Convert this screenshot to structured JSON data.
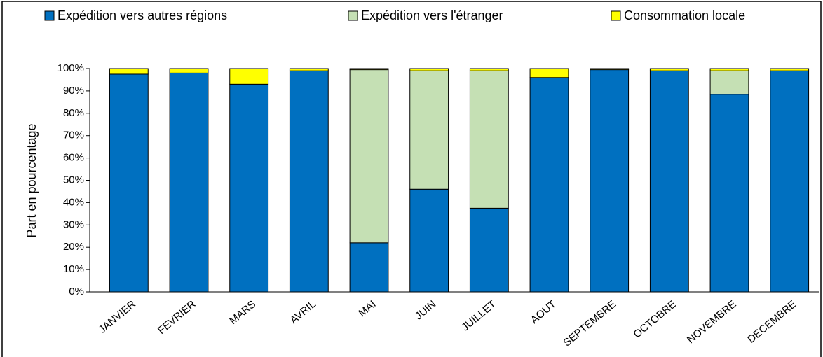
{
  "chart_data": {
    "type": "stacked_bar",
    "y_label": "Part en pourcentage",
    "categories": [
      "JANVIER",
      "FEVRIER",
      "MARS",
      "AVRIL",
      "MAI",
      "JUIN",
      "JUILLET",
      "AOUT",
      "SEPTEMBRE",
      "OCTOBRE",
      "NOVEMBRE",
      "DECEMBRE"
    ],
    "series": [
      {
        "name": "Expédition vers autres régions",
        "color": "#0070c0",
        "values": [
          97.5,
          98,
          93,
          99,
          22,
          46,
          37.5,
          96,
          99.5,
          99,
          88.5,
          99
        ]
      },
      {
        "name": "Expédition vers l'étranger",
        "color": "#c5e0b4",
        "values": [
          0,
          0,
          0,
          0,
          77.5,
          53,
          61.5,
          0,
          0,
          0,
          10.5,
          0
        ]
      },
      {
        "name": "Consommation locale",
        "color": "#ffff00",
        "values": [
          2.5,
          2,
          7,
          1,
          0.5,
          1,
          1,
          4,
          0.5,
          1,
          1,
          1
        ]
      }
    ],
    "ylim": [
      0,
      100
    ],
    "yticks": [
      {
        "value": 0,
        "label": "0%"
      },
      {
        "value": 10,
        "label": "10%"
      },
      {
        "value": 20,
        "label": "20%"
      },
      {
        "value": 30,
        "label": "30%"
      },
      {
        "value": 40,
        "label": "40%"
      },
      {
        "value": 50,
        "label": "50%"
      },
      {
        "value": 60,
        "label": "60%"
      },
      {
        "value": 70,
        "label": "70%"
      },
      {
        "value": 80,
        "label": "80%"
      },
      {
        "value": 90,
        "label": "90%"
      },
      {
        "value": 100,
        "label": "100%"
      }
    ],
    "legend": "top",
    "grid": false
  }
}
